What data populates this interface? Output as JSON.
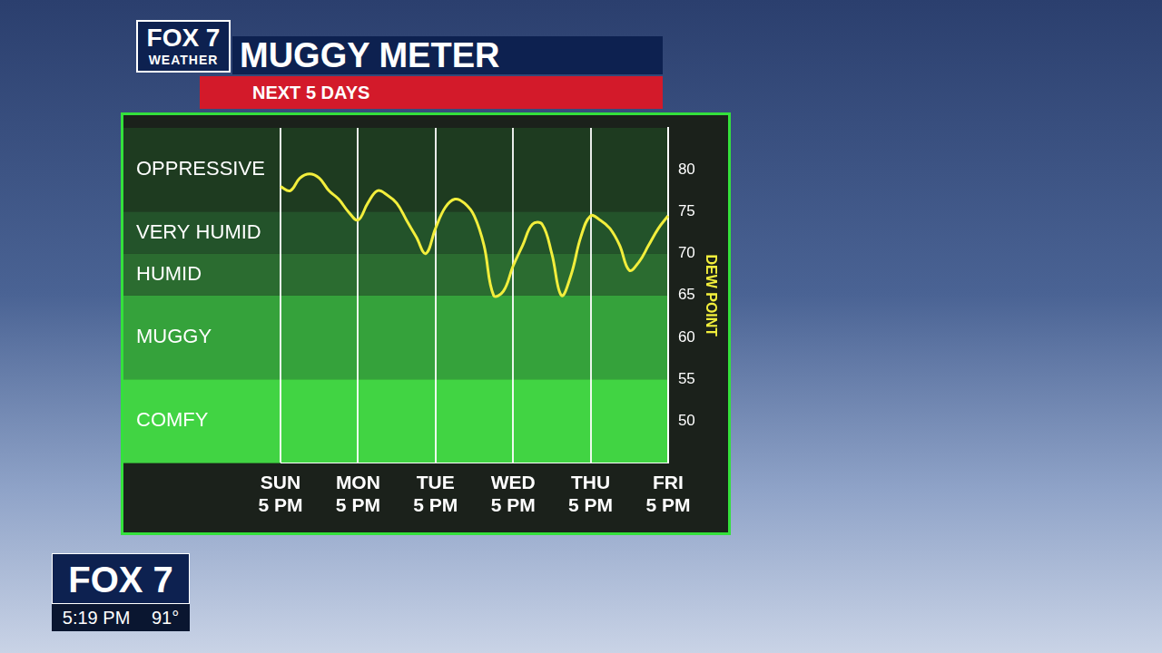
{
  "logo": {
    "text": "FOX 7",
    "subtext": "WEATHER"
  },
  "bug": {
    "station": "FOX 7",
    "time": "5:19 PM",
    "temperature": "91°"
  },
  "chart_data": {
    "type": "line",
    "title": "MUGGY METER",
    "subtitle": "NEXT 5 DAYS",
    "y_label": "DEW POINT",
    "categories": [
      "SUN 5 PM",
      null,
      null,
      null,
      null,
      null,
      null,
      null,
      "MON 5 PM",
      null,
      null,
      null,
      null,
      null,
      null,
      null,
      "TUE 5 PM",
      null,
      null,
      null,
      null,
      null,
      null,
      null,
      "WED 5 PM",
      null,
      null,
      null,
      null,
      null,
      null,
      null,
      "THU 5 PM",
      null,
      null,
      null,
      null,
      null,
      null,
      null,
      "FRI 5 PM"
    ],
    "values": [
      78,
      77.5,
      79,
      79.5,
      79,
      77.5,
      76.5,
      75,
      74,
      76,
      77.5,
      77,
      76,
      74,
      72,
      70,
      73,
      75.5,
      76.5,
      76,
      74.5,
      71,
      65,
      65.5,
      68.5,
      71,
      73.5,
      73.5,
      70,
      65,
      67.5,
      72,
      74.5,
      74,
      73,
      71,
      68,
      69,
      71,
      73,
      74.5
    ],
    "color": "#f2ee3c",
    "ylim": [
      45,
      85
    ],
    "yticks": [
      50,
      55,
      60,
      65,
      70,
      75,
      80
    ],
    "grid": true,
    "bands": [
      {
        "label": "OPPRESSIVE",
        "from": 75,
        "to": 85,
        "color": "#1e3b20"
      },
      {
        "label": "VERY HUMID",
        "from": 70,
        "to": 75,
        "color": "#23532a"
      },
      {
        "label": "HUMID",
        "from": 65,
        "to": 70,
        "color": "#2b6c30"
      },
      {
        "label": "MUGGY",
        "from": 55,
        "to": 65,
        "color": "#35a23b"
      },
      {
        "label": "COMFY",
        "from": 45,
        "to": 55,
        "color": "#41d443"
      }
    ]
  }
}
